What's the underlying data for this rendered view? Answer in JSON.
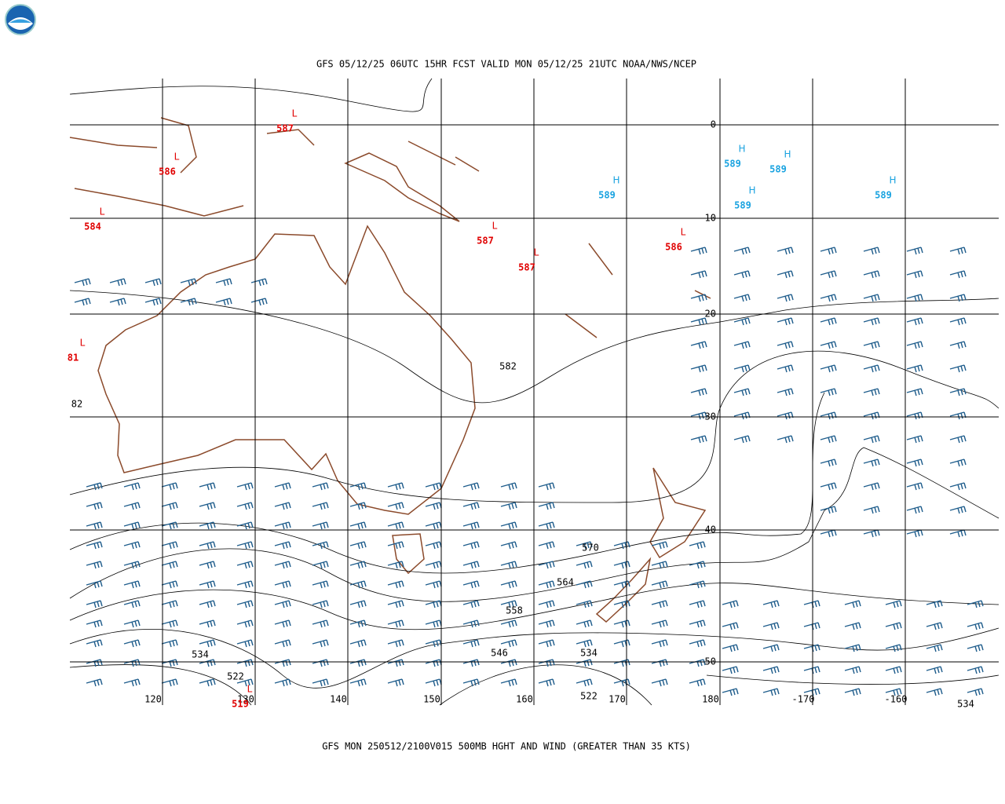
{
  "header": {
    "title": "GFS 05/12/25 06UTC 15HR FCST VALID MON 05/12/25 21UTC NOAA/NWS/NCEP"
  },
  "footer": {
    "caption": "GFS MON 250512/2100V015 500MB HGHT AND WIND (GREATER THAN 35 KTS)"
  },
  "longitude_labels": [
    "120",
    "130",
    "140",
    "150",
    "160",
    "170",
    "180",
    "-170",
    "-160"
  ],
  "latitude_labels": [
    "0",
    "10",
    "20",
    "30",
    "40",
    "50"
  ],
  "centers": [
    {
      "letter": "L",
      "value": 587
    },
    {
      "letter": "L",
      "value": 586
    },
    {
      "letter": "L",
      "value": 584
    },
    {
      "letter": "L",
      "value": 81
    },
    {
      "letter": "L",
      "value": 587
    },
    {
      "letter": "L",
      "value": 587
    },
    {
      "letter": "L",
      "value": 586
    },
    {
      "letter": "H",
      "value": 589
    },
    {
      "letter": "H",
      "value": 589
    },
    {
      "letter": "H",
      "value": 589
    },
    {
      "letter": "H",
      "value": 589
    },
    {
      "letter": "H",
      "value": 589
    },
    {
      "letter": "L",
      "value": 519
    }
  ],
  "contour_labels": [
    582,
    82,
    570,
    564,
    558,
    546,
    534,
    534,
    522,
    522,
    534
  ]
}
